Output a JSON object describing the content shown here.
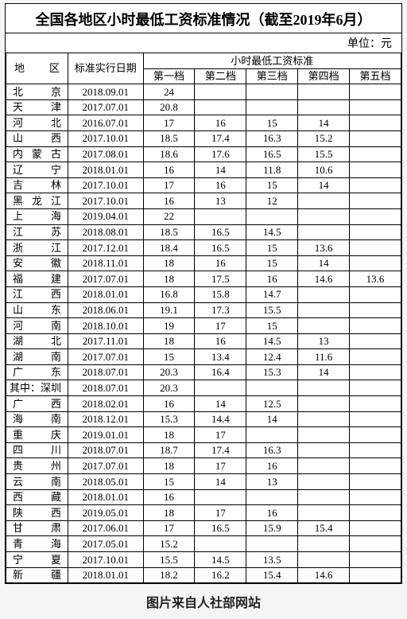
{
  "title": "全国各地区小时最低工资标准情况（截至2019年6月）",
  "unit": "单位：元",
  "caption": "图片来自人社部网站",
  "headers": {
    "region": "地区",
    "date": "标准实行日期",
    "group": "小时最低工资标准",
    "tiers": [
      "第一档",
      "第二档",
      "第三档",
      "第四档",
      "第五档"
    ]
  },
  "rows": [
    {
      "region": "北　京",
      "date": "2018.09.01",
      "v": [
        "24",
        "",
        "",
        "",
        ""
      ]
    },
    {
      "region": "天　津",
      "date": "2017.07.01",
      "v": [
        "20.8",
        "",
        "",
        "",
        ""
      ]
    },
    {
      "region": "河　北",
      "date": "2016.07.01",
      "v": [
        "17",
        "16",
        "15",
        "14",
        ""
      ]
    },
    {
      "region": "山　西",
      "date": "2017.10.01",
      "v": [
        "18.5",
        "17.4",
        "16.3",
        "15.2",
        ""
      ]
    },
    {
      "region": "内蒙古",
      "date": "2017.08.01",
      "v": [
        "18.6",
        "17.6",
        "16.5",
        "15.5",
        ""
      ]
    },
    {
      "region": "辽　宁",
      "date": "2018.01.01",
      "v": [
        "16",
        "14",
        "11.8",
        "10.6",
        ""
      ]
    },
    {
      "region": "吉　林",
      "date": "2017.10.01",
      "v": [
        "17",
        "16",
        "15",
        "14",
        ""
      ]
    },
    {
      "region": "黑龙江",
      "date": "2017.10.01",
      "v": [
        "16",
        "13",
        "12",
        "",
        ""
      ]
    },
    {
      "region": "上　海",
      "date": "2019.04.01",
      "v": [
        "22",
        "",
        "",
        "",
        ""
      ]
    },
    {
      "region": "江　苏",
      "date": "2018.08.01",
      "v": [
        "18.5",
        "16.5",
        "14.5",
        "",
        ""
      ]
    },
    {
      "region": "浙　江",
      "date": "2017.12.01",
      "v": [
        "18.4",
        "16.5",
        "15",
        "13.6",
        ""
      ]
    },
    {
      "region": "安　徽",
      "date": "2018.11.01",
      "v": [
        "18",
        "16",
        "15",
        "14",
        ""
      ]
    },
    {
      "region": "福　建",
      "date": "2017.07.01",
      "v": [
        "18",
        "17.5",
        "16",
        "14.6",
        "13.6"
      ]
    },
    {
      "region": "江　西",
      "date": "2018.01.01",
      "v": [
        "16.8",
        "15.8",
        "14.7",
        "",
        ""
      ]
    },
    {
      "region": "山　东",
      "date": "2018.06.01",
      "v": [
        "19.1",
        "17.3",
        "15.5",
        "",
        ""
      ]
    },
    {
      "region": "河　南",
      "date": "2018.10.01",
      "v": [
        "19",
        "17",
        "15",
        "",
        ""
      ]
    },
    {
      "region": "湖　北",
      "date": "2017.11.01",
      "v": [
        "18",
        "16",
        "14.5",
        "13",
        ""
      ]
    },
    {
      "region": "湖　南",
      "date": "2017.07.01",
      "v": [
        "15",
        "13.4",
        "12.4",
        "11.6",
        ""
      ]
    },
    {
      "region": "广　东",
      "date": "2018.07.01",
      "v": [
        "20.3",
        "16.4",
        "15.3",
        "14",
        ""
      ]
    },
    {
      "region": "其中：深圳",
      "date": "2018.07.01",
      "v": [
        "20.3",
        "",
        "",
        "",
        ""
      ],
      "sp": true
    },
    {
      "region": "广　西",
      "date": "2018.02.01",
      "v": [
        "16",
        "14",
        "12.5",
        "",
        ""
      ]
    },
    {
      "region": "海　南",
      "date": "2018.12.01",
      "v": [
        "15.3",
        "14.4",
        "14",
        "",
        ""
      ]
    },
    {
      "region": "重　庆",
      "date": "2019.01.01",
      "v": [
        "18",
        "17",
        "",
        "",
        ""
      ]
    },
    {
      "region": "四　川",
      "date": "2018.07.01",
      "v": [
        "18.7",
        "17.4",
        "16.3",
        "",
        ""
      ]
    },
    {
      "region": "贵　州",
      "date": "2017.07.01",
      "v": [
        "18",
        "17",
        "16",
        "",
        ""
      ]
    },
    {
      "region": "云　南",
      "date": "2018.05.01",
      "v": [
        "15",
        "14",
        "13",
        "",
        ""
      ]
    },
    {
      "region": "西　藏",
      "date": "2018.01.01",
      "v": [
        "16",
        "",
        "",
        "",
        ""
      ]
    },
    {
      "region": "陕　西",
      "date": "2019.05.01",
      "v": [
        "18",
        "17",
        "16",
        "",
        ""
      ]
    },
    {
      "region": "甘　肃",
      "date": "2017.06.01",
      "v": [
        "17",
        "16.5",
        "15.9",
        "15.4",
        ""
      ]
    },
    {
      "region": "青　海",
      "date": "2017.05.01",
      "v": [
        "15.2",
        "",
        "",
        "",
        ""
      ]
    },
    {
      "region": "宁　夏",
      "date": "2017.10.01",
      "v": [
        "15.5",
        "14.5",
        "13.5",
        "",
        ""
      ]
    },
    {
      "region": "新　疆",
      "date": "2018.01.01",
      "v": [
        "18.2",
        "16.2",
        "15.4",
        "14.6",
        ""
      ]
    }
  ],
  "style": {
    "border_color": "#000000",
    "background_color": "#ffffff",
    "title_fontsize": 18,
    "body_fontsize": 13,
    "caption_fontsize": 16
  }
}
